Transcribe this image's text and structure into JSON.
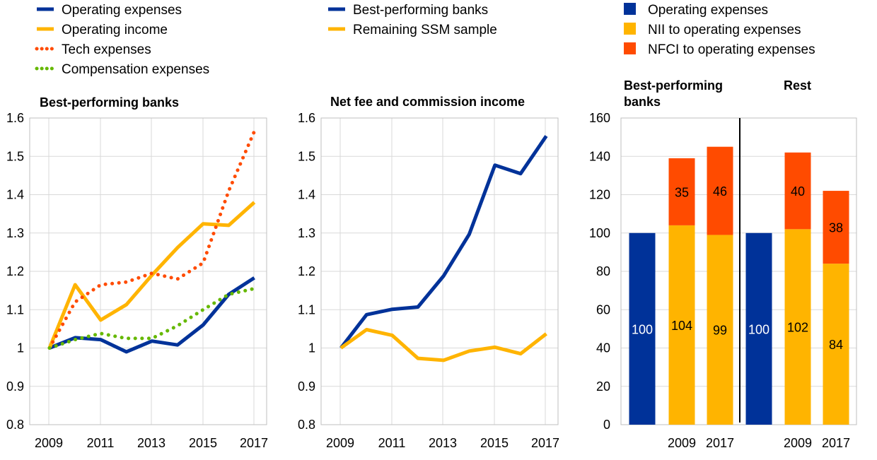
{
  "colors": {
    "navy": "#003299",
    "yellow": "#FFB400",
    "orange": "#FF4B00",
    "green": "#65B800",
    "grid": "#D9D9D9",
    "axis": "#BFBFBF"
  },
  "chart_data": [
    {
      "type": "line",
      "title": "Best-performing banks",
      "x": [
        2009,
        2010,
        2011,
        2012,
        2013,
        2014,
        2015,
        2016,
        2017
      ],
      "x_tick_labels": [
        "2009",
        "2011",
        "2013",
        "2015",
        "2017"
      ],
      "y_tick_labels": [
        "0.8",
        "0.9",
        "1",
        "1.1",
        "1.2",
        "1.3",
        "1.4",
        "1.5",
        "1.6"
      ],
      "ylim": [
        0.8,
        1.6
      ],
      "grid": true,
      "series": [
        {
          "name": "Operating expenses",
          "color": "navy",
          "style": "solid",
          "values": [
            1.0,
            1.027,
            1.022,
            0.99,
            1.018,
            1.008,
            1.06,
            1.14,
            1.183
          ]
        },
        {
          "name": "Operating income",
          "color": "yellow",
          "style": "solid",
          "values": [
            1.0,
            1.165,
            1.073,
            1.113,
            1.19,
            1.262,
            1.324,
            1.32,
            1.38
          ]
        },
        {
          "name": "Tech expenses",
          "color": "orange",
          "style": "dotted",
          "values": [
            1.0,
            1.12,
            1.165,
            1.172,
            1.195,
            1.18,
            1.222,
            1.41,
            1.565
          ]
        },
        {
          "name": "Compensation expenses",
          "color": "green",
          "style": "dotted",
          "values": [
            1.0,
            1.022,
            1.038,
            1.025,
            1.025,
            1.058,
            1.1,
            1.14,
            1.155
          ]
        }
      ]
    },
    {
      "type": "line",
      "title": "Net fee and commission income",
      "x": [
        2009,
        2010,
        2011,
        2012,
        2013,
        2014,
        2015,
        2016,
        2017
      ],
      "x_tick_labels": [
        "2009",
        "2011",
        "2013",
        "2015",
        "2017"
      ],
      "y_tick_labels": [
        "0.8",
        "0.9",
        "1",
        "1.1",
        "1.2",
        "1.3",
        "1.4",
        "1.5",
        "1.6"
      ],
      "ylim": [
        0.8,
        1.6
      ],
      "grid": true,
      "series": [
        {
          "name": "Best-performing banks",
          "color": "navy",
          "style": "solid",
          "values": [
            1.0,
            1.087,
            1.101,
            1.107,
            1.188,
            1.297,
            1.477,
            1.455,
            1.553
          ]
        },
        {
          "name": "Remaining SSM sample",
          "color": "yellow",
          "style": "solid",
          "values": [
            1.0,
            1.048,
            1.033,
            0.973,
            0.968,
            0.992,
            1.002,
            0.985,
            1.037
          ]
        }
      ]
    },
    {
      "type": "bar",
      "stacked": true,
      "group_titles": [
        "Best-performing banks",
        "Rest"
      ],
      "categories": [
        "",
        "2009",
        "2017",
        "",
        "2009",
        "2017"
      ],
      "ylim": [
        0,
        160
      ],
      "y_tick_labels": [
        "0",
        "20",
        "40",
        "60",
        "80",
        "100",
        "120",
        "140",
        "160"
      ],
      "grid": true,
      "series": [
        {
          "name": "Operating expenses",
          "color": "navy",
          "values": [
            100,
            null,
            null,
            100,
            null,
            null
          ]
        },
        {
          "name": "NII to operating expenses",
          "color": "yellow",
          "values": [
            null,
            104,
            99,
            null,
            102,
            84
          ]
        },
        {
          "name": "NFCI to operating expenses",
          "color": "orange",
          "values": [
            null,
            35,
            46,
            null,
            40,
            38
          ]
        }
      ]
    }
  ]
}
